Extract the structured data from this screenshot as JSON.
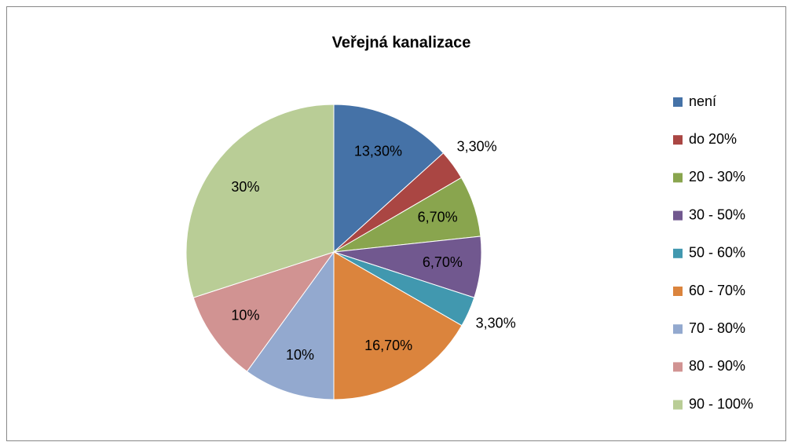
{
  "chart_data": {
    "type": "pie",
    "title": "Veřejná kanalizace",
    "categories": [
      "není",
      "do 20%",
      "20 - 30%",
      "30 - 50%",
      "50 - 60%",
      "60 - 70%",
      "70 - 80%",
      "80 - 90%",
      "90 - 100%"
    ],
    "values": [
      13.3,
      3.3,
      6.7,
      6.7,
      3.3,
      16.7,
      10,
      10,
      30
    ],
    "value_labels": [
      "13,30%",
      "3,30%",
      "6,70%",
      "6,70%",
      "3,30%",
      "16,70%",
      "10%",
      "10%",
      "30%"
    ],
    "colors": [
      "#4572a7",
      "#aa4643",
      "#89a54e",
      "#71588f",
      "#4198af",
      "#db843d",
      "#93a9cf",
      "#d19392",
      "#b9cd96"
    ],
    "legend": "right"
  }
}
